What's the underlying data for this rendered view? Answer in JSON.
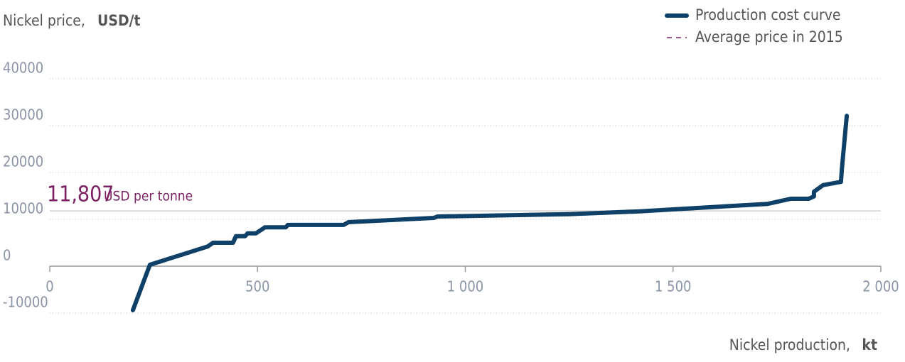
{
  "chart_data": {
    "type": "line",
    "y_title": "Nickel price,",
    "y_unit": "USD/t",
    "x_title": "Nickel production,",
    "x_unit": "kt",
    "xlim": [
      0,
      2000
    ],
    "ylim": [
      -10000,
      40000
    ],
    "xticks": [
      0,
      500,
      {
        "value": 1000,
        "label": "1 000"
      },
      {
        "value": 1500,
        "label": "1 500"
      },
      {
        "value": 2000,
        "label": "2 000"
      }
    ],
    "yticks": [
      -10000,
      0,
      10000,
      20000,
      30000,
      40000
    ],
    "grid": true,
    "legend": "top-right",
    "series": [
      {
        "name": "Production cost curve",
        "color": "#0f4067",
        "x": [
          200,
          241,
          380,
          393,
          441,
          448,
          470,
          476,
          496,
          518,
          568,
          573,
          707,
          719,
          924,
          933,
          1249,
          1420,
          1591,
          1728,
          1784,
          1827,
          1839,
          1839,
          1861,
          1904,
          1906,
          1918
        ],
        "values": [
          -9400,
          300,
          4200,
          5000,
          5000,
          6400,
          6400,
          7000,
          7000,
          8300,
          8300,
          8800,
          8800,
          9400,
          10300,
          10600,
          11100,
          11700,
          12600,
          13300,
          14400,
          14400,
          14900,
          15900,
          17300,
          18000,
          20500,
          32100
        ]
      }
    ],
    "reference": {
      "name": "Average price in 2015",
      "color": "#7b1f63",
      "line_color": "#cfcfcf",
      "value": 11807,
      "value_label": "11,807",
      "unit_label": "USD per tonne"
    }
  }
}
